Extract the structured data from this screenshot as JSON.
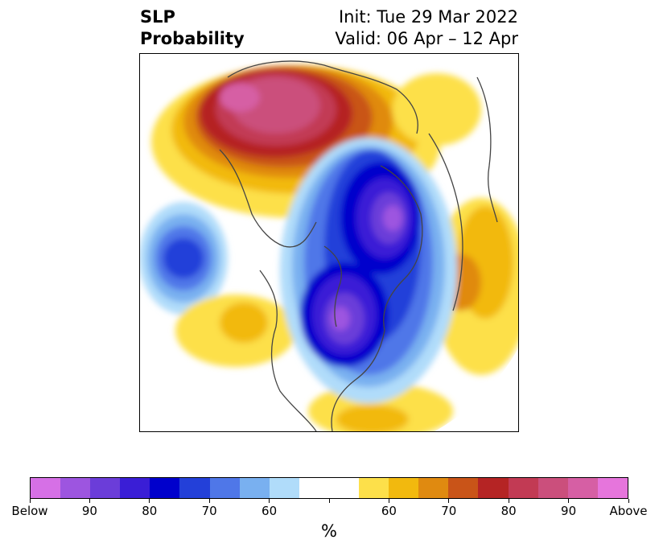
{
  "header": {
    "title_line1": "SLP",
    "title_line2": "Probability",
    "init_label": "Init: Tue 29 Mar 2022",
    "valid_label": "Valid: 06 Apr – 12 Apr"
  },
  "colorbar": {
    "colors": [
      "#d670e6",
      "#9d55e0",
      "#6b3dd9",
      "#3a1ed6",
      "#0000cc",
      "#2340d9",
      "#4f77e8",
      "#79b0f0",
      "#b0dcfa",
      "#ffffff",
      "#ffffff",
      "#fde04a",
      "#f2b90e",
      "#e08a10",
      "#c95418",
      "#b52424",
      "#c23a54",
      "#cb4f7c",
      "#d65fa4",
      "#e675dc"
    ],
    "tick_labels": [
      "Below",
      "90",
      "80",
      "70",
      "60",
      "",
      "60",
      "70",
      "80",
      "90",
      "Above"
    ],
    "units_label": "%"
  }
}
